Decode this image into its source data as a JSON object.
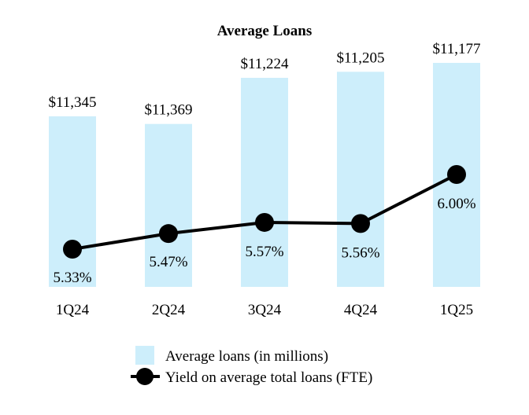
{
  "chart_data": {
    "type": "bar",
    "title": "Average Loans",
    "categories": [
      "1Q24",
      "2Q24",
      "3Q24",
      "4Q24",
      "1Q25"
    ],
    "series": [
      {
        "name": "Average loans (in millions)",
        "type": "bar",
        "values": [
          11345,
          11369,
          11224,
          11205,
          11177
        ],
        "labels": [
          "$11,345",
          "$11,369",
          "$11,224",
          "$11,205",
          "$11,177"
        ],
        "color": "#cdeefb"
      },
      {
        "name": "Yield on average total loans (FTE)",
        "type": "line",
        "values": [
          5.33,
          5.47,
          5.57,
          5.56,
          6.0
        ],
        "labels": [
          "5.33%",
          "5.47%",
          "5.57%",
          "5.56%",
          "6.00%"
        ],
        "color": "#000000"
      }
    ],
    "legend_position": "bottom",
    "grid": false
  }
}
